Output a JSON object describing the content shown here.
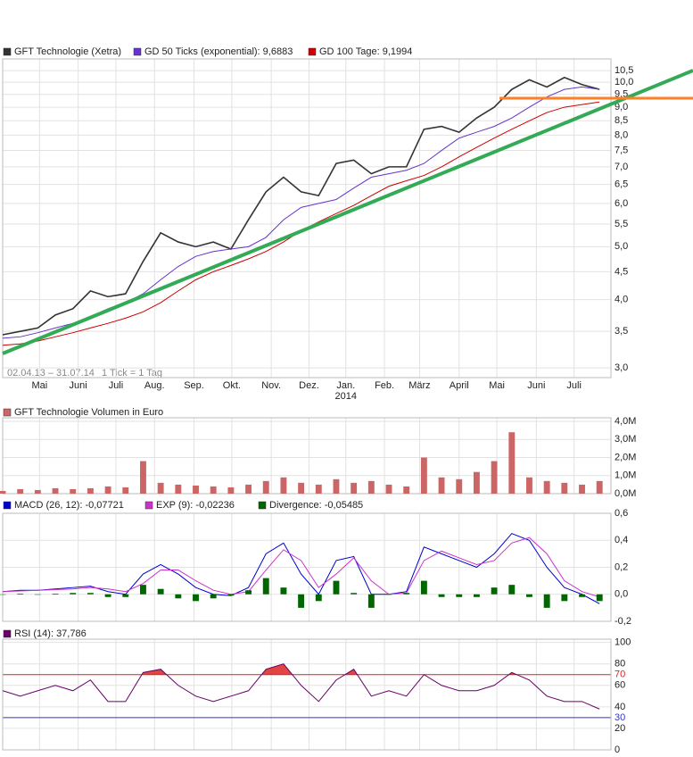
{
  "range_label": "02.04.13 – 31.07.14",
  "tick_label": "1 Tick = 1 Tag",
  "chart_data": [
    {
      "type": "line",
      "log_scale": true,
      "grid": true,
      "x": [
        0,
        2,
        4,
        6,
        8,
        10,
        12,
        14,
        16,
        18,
        20,
        22,
        24,
        26,
        28,
        30,
        32,
        34,
        36,
        38,
        40,
        42,
        44,
        46,
        48,
        50,
        52,
        54,
        56,
        58,
        60,
        62,
        64,
        66,
        68
      ],
      "xlim": [
        0,
        69.3
      ],
      "xticks": [
        {
          "value": 4.2,
          "label": "Mai"
        },
        {
          "value": 8.6,
          "label": "Juni"
        },
        {
          "value": 12.9,
          "label": "Juli"
        },
        {
          "value": 17.3,
          "label": "Aug."
        },
        {
          "value": 21.8,
          "label": "Sep."
        },
        {
          "value": 26.1,
          "label": "Okt."
        },
        {
          "value": 30.6,
          "label": "Nov."
        },
        {
          "value": 34.9,
          "label": "Dez."
        },
        {
          "value": 39.1,
          "label": "Jan."
        },
        {
          "value": 43.5,
          "label": "Feb."
        },
        {
          "value": 47.5,
          "label": "März"
        },
        {
          "value": 52,
          "label": "April"
        },
        {
          "value": 56.3,
          "label": "Mai"
        },
        {
          "value": 60.8,
          "label": "Juni"
        },
        {
          "value": 65.1,
          "label": "Juli"
        }
      ],
      "year_ticks": [
        {
          "value": 39.1,
          "label": "2014"
        }
      ],
      "ylim": [
        2.88,
        11.03
      ],
      "yticks": [
        {
          "value": 3,
          "label": "3,0"
        },
        {
          "value": 3.5,
          "label": "3,5"
        },
        {
          "value": 4,
          "label": "4,0"
        },
        {
          "value": 4.5,
          "label": "4,5"
        },
        {
          "value": 5,
          "label": "5,0"
        },
        {
          "value": 5.5,
          "label": "5,5"
        },
        {
          "value": 6,
          "label": "6,0"
        },
        {
          "value": 6.5,
          "label": "6,5"
        },
        {
          "value": 7,
          "label": "7,0"
        },
        {
          "value": 7.5,
          "label": "7,5"
        },
        {
          "value": 8,
          "label": "8,0"
        },
        {
          "value": 8.5,
          "label": "8,5"
        },
        {
          "value": 9,
          "label": "9,0"
        },
        {
          "value": 9.5,
          "label": "9,5"
        },
        {
          "value": 10,
          "label": "10,0"
        },
        {
          "value": 10.5,
          "label": "10,5"
        }
      ],
      "series": [
        {
          "name": "GFT Technologie (Xetra)",
          "color": "#333333",
          "values": [
            3.45,
            3.5,
            3.55,
            3.75,
            3.85,
            4.15,
            4.05,
            4.1,
            4.7,
            5.3,
            5.1,
            5.0,
            5.1,
            4.95,
            5.6,
            6.3,
            6.7,
            6.3,
            6.2,
            7.1,
            7.2,
            6.8,
            7.0,
            7.0,
            8.2,
            8.3,
            8.1,
            8.6,
            9.0,
            9.7,
            10.1,
            9.8,
            10.2,
            9.9,
            9.7
          ]
        },
        {
          "name": "GD 50 Ticks (exponential): 9,6883",
          "color": "#6633cc",
          "values": [
            3.4,
            3.42,
            3.48,
            3.55,
            3.62,
            3.72,
            3.85,
            3.95,
            4.1,
            4.35,
            4.6,
            4.8,
            4.9,
            4.95,
            5.0,
            5.2,
            5.6,
            5.9,
            6.0,
            6.1,
            6.4,
            6.7,
            6.8,
            6.9,
            7.1,
            7.5,
            7.9,
            8.1,
            8.3,
            8.6,
            9.0,
            9.4,
            9.7,
            9.8,
            9.7
          ]
        },
        {
          "name": "GD 100 Tage: 9,1994",
          "color": "#cc0000",
          "values": [
            3.3,
            3.32,
            3.36,
            3.42,
            3.48,
            3.55,
            3.62,
            3.7,
            3.8,
            3.95,
            4.15,
            4.35,
            4.5,
            4.62,
            4.75,
            4.9,
            5.1,
            5.35,
            5.55,
            5.75,
            5.95,
            6.2,
            6.45,
            6.6,
            6.75,
            7.0,
            7.3,
            7.6,
            7.9,
            8.2,
            8.5,
            8.8,
            9.0,
            9.1,
            9.2
          ]
        }
      ]
    },
    {
      "type": "bar",
      "grid": true,
      "x": [
        0,
        2,
        4,
        6,
        8,
        10,
        12,
        14,
        16,
        18,
        20,
        22,
        24,
        26,
        28,
        30,
        32,
        34,
        36,
        38,
        40,
        42,
        44,
        46,
        48,
        50,
        52,
        54,
        56,
        58,
        60,
        62,
        64,
        66,
        68
      ],
      "xlim": [
        0,
        69.3
      ],
      "ylim": [
        0,
        4200000
      ],
      "yticks": [
        {
          "value": 0,
          "label": "0,0M"
        },
        {
          "value": 1000000,
          "label": "1,0M"
        },
        {
          "value": 2000000,
          "label": "2,0M"
        },
        {
          "value": 3000000,
          "label": "3,0M"
        },
        {
          "value": 4000000,
          "label": "4,0M"
        }
      ],
      "series": [
        {
          "name": "GFT Technologie Volumen in Euro",
          "color": "#cc6666",
          "values": [
            150000,
            250000,
            200000,
            300000,
            250000,
            300000,
            400000,
            350000,
            1800000,
            600000,
            500000,
            450000,
            400000,
            350000,
            500000,
            700000,
            900000,
            600000,
            500000,
            800000,
            600000,
            700000,
            500000,
            400000,
            2000000,
            900000,
            800000,
            1200000,
            1800000,
            3400000,
            900000,
            700000,
            600000,
            500000,
            700000
          ]
        }
      ]
    },
    {
      "type": "macd",
      "grid": true,
      "x": [
        0,
        2,
        4,
        6,
        8,
        10,
        12,
        14,
        16,
        18,
        20,
        22,
        24,
        26,
        28,
        30,
        32,
        34,
        36,
        38,
        40,
        42,
        44,
        46,
        48,
        50,
        52,
        54,
        56,
        58,
        60,
        62,
        64,
        66,
        68
      ],
      "xlim": [
        0,
        69.3
      ],
      "ylim": [
        -0.2,
        0.6
      ],
      "yticks": [
        {
          "value": -0.2,
          "label": "-0,2"
        },
        {
          "value": 0,
          "label": "0,0"
        },
        {
          "value": 0.2,
          "label": "0,2"
        },
        {
          "value": 0.4,
          "label": "0,4"
        },
        {
          "value": 0.6,
          "label": "0,6"
        }
      ],
      "series": [
        {
          "name": "MACD (26, 12): -0,07721",
          "color": "#0000cc",
          "values": [
            0.02,
            0.03,
            0.03,
            0.04,
            0.05,
            0.06,
            0.02,
            0.0,
            0.15,
            0.22,
            0.15,
            0.05,
            0.0,
            -0.01,
            0.05,
            0.3,
            0.38,
            0.15,
            0.0,
            0.25,
            0.28,
            0.0,
            0.0,
            0.02,
            0.35,
            0.3,
            0.25,
            0.2,
            0.3,
            0.45,
            0.4,
            0.2,
            0.05,
            0.0,
            -0.07
          ]
        },
        {
          "name": "EXP (9): -0,02236",
          "color": "#cc33cc",
          "values": [
            0.02,
            0.025,
            0.03,
            0.035,
            0.04,
            0.05,
            0.04,
            0.02,
            0.08,
            0.18,
            0.18,
            0.1,
            0.03,
            0.0,
            0.02,
            0.18,
            0.33,
            0.25,
            0.05,
            0.15,
            0.27,
            0.1,
            0.0,
            0.01,
            0.25,
            0.32,
            0.27,
            0.22,
            0.25,
            0.38,
            0.42,
            0.3,
            0.1,
            0.02,
            -0.02
          ]
        },
        {
          "name": "Divergence: -0,05485",
          "color": "#006600",
          "bars": true,
          "values": [
            0,
            0.005,
            0,
            0.005,
            0.01,
            0.01,
            -0.02,
            -0.02,
            0.07,
            0.04,
            -0.03,
            -0.05,
            -0.03,
            -0.01,
            0.03,
            0.12,
            0.05,
            -0.1,
            -0.05,
            0.1,
            0.01,
            -0.1,
            0,
            0.01,
            0.1,
            -0.02,
            -0.02,
            -0.02,
            0.05,
            0.07,
            -0.02,
            -0.1,
            -0.05,
            -0.02,
            -0.05
          ]
        }
      ]
    },
    {
      "type": "rsi",
      "grid": true,
      "x": [
        0,
        2,
        4,
        6,
        8,
        10,
        12,
        14,
        16,
        18,
        20,
        22,
        24,
        26,
        28,
        30,
        32,
        34,
        36,
        38,
        40,
        42,
        44,
        46,
        48,
        50,
        52,
        54,
        56,
        58,
        60,
        62,
        64,
        66,
        68
      ],
      "xlim": [
        0,
        69.3
      ],
      "ylim": [
        0,
        103
      ],
      "yticks": [
        0,
        20,
        40,
        60,
        80,
        100
      ],
      "levels": [
        {
          "value": 70,
          "color": "#dd2222"
        },
        {
          "value": 30,
          "color": "#3333cc"
        }
      ],
      "series": [
        {
          "name": "RSI (14): 37,786",
          "color": "#660066",
          "values": [
            55,
            50,
            55,
            60,
            55,
            65,
            45,
            45,
            72,
            75,
            60,
            50,
            45,
            50,
            55,
            75,
            80,
            60,
            45,
            65,
            75,
            50,
            55,
            50,
            70,
            60,
            55,
            55,
            60,
            72,
            65,
            50,
            45,
            45,
            38
          ]
        }
      ]
    }
  ]
}
